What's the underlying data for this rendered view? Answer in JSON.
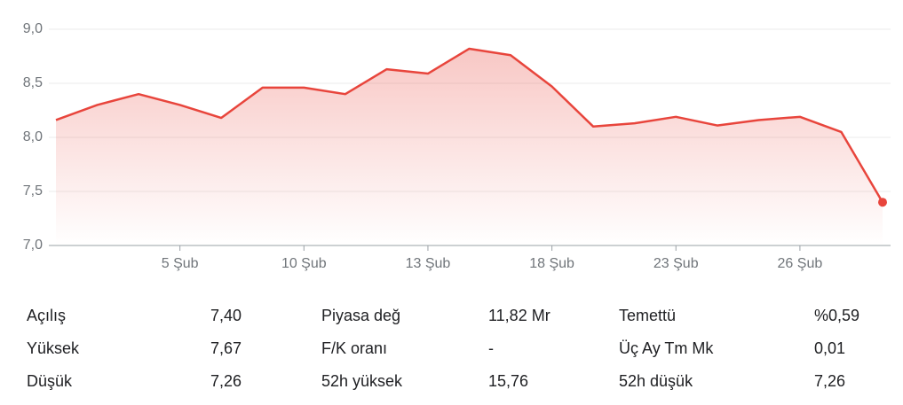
{
  "chart_data": {
    "type": "line",
    "categories": [
      null,
      null,
      null,
      "5 Şub",
      null,
      null,
      "10 Şub",
      null,
      null,
      "13 Şub",
      null,
      null,
      "18 Şub",
      null,
      null,
      "23 Şub",
      null,
      null,
      "26 Şub",
      null,
      null
    ],
    "series": [
      {
        "color": "#e8453c",
        "values": [
          8.16,
          8.3,
          8.4,
          8.3,
          8.18,
          8.46,
          8.46,
          8.4,
          8.63,
          8.59,
          8.82,
          8.76,
          8.47,
          8.1,
          8.13,
          8.19,
          8.11,
          8.16,
          8.19,
          8.05,
          7.4
        ]
      }
    ],
    "ylim": [
      7.0,
      9.0
    ],
    "yticks": [
      {
        "value": 7.0,
        "label": "7,0"
      },
      {
        "value": 7.5,
        "label": "7,5"
      },
      {
        "value": 8.0,
        "label": "8,0"
      },
      {
        "value": 8.5,
        "label": "8,5"
      },
      {
        "value": 9.0,
        "label": "9,0"
      }
    ],
    "grid": true
  },
  "stats": [
    [
      [
        "Açılış",
        "7,40"
      ],
      [
        "Piyasa değ",
        "11,82 Mr"
      ],
      [
        "Temettü",
        "%0,59"
      ]
    ],
    [
      [
        "Yüksek",
        "7,67"
      ],
      [
        "F/K oranı",
        "-"
      ],
      [
        "Üç Ay Tm Mk",
        "0,01"
      ]
    ],
    [
      [
        "Düşük",
        "7,26"
      ],
      [
        "52h yüksek",
        "15,76"
      ],
      [
        "52h düşük",
        "7,26"
      ]
    ]
  ]
}
